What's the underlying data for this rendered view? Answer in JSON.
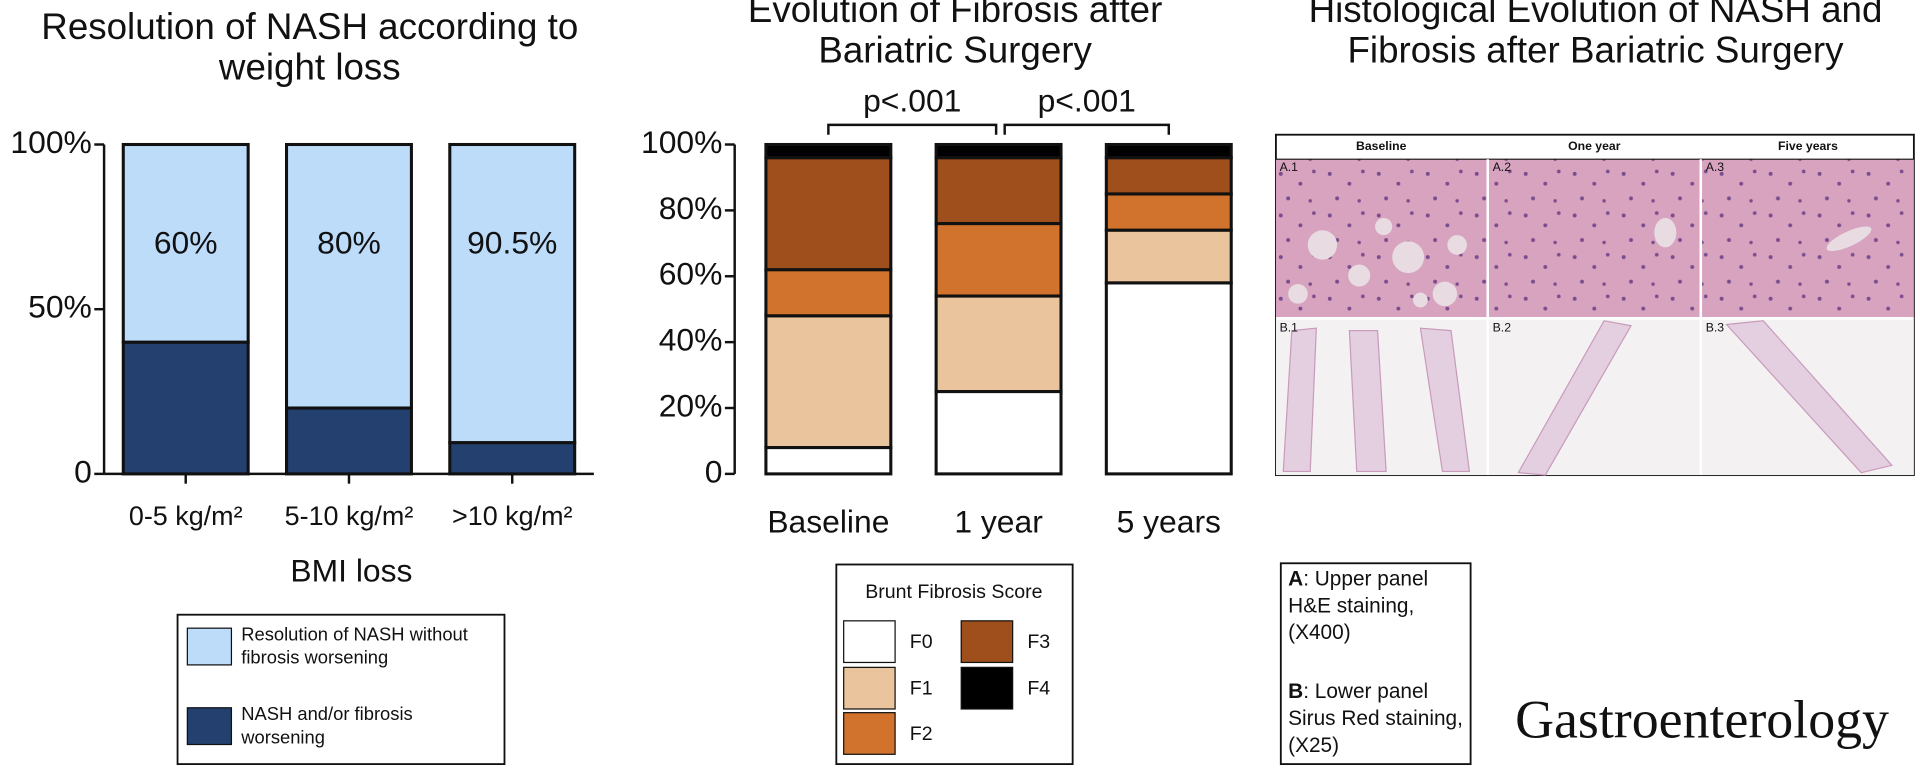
{
  "chart_data": [
    {
      "type": "bar",
      "stacked": true,
      "title": "Resolution of NASH according to weight loss",
      "categories": [
        "0-5 kg/m²",
        "5-10 kg/m²",
        ">10 kg/m²"
      ],
      "x_label": "BMI loss",
      "ylim": [
        0,
        100
      ],
      "yticks": [
        0,
        {
          "value": 50,
          "label": "50%"
        },
        {
          "value": 100,
          "label": "100%"
        }
      ],
      "series": [
        {
          "name": "NASH and/or fibrosis worsening",
          "color": "#24406e",
          "values": [
            40,
            20,
            9.5
          ]
        },
        {
          "name": "Resolution of NASH without fibrosis worsening",
          "color": "#bcdcfa",
          "values": [
            60,
            80,
            90.5
          ],
          "value_labels": [
            "60%",
            "80%",
            "90.5%"
          ]
        }
      ]
    },
    {
      "type": "bar",
      "stacked": true,
      "title": "Evolution of Fibrosis after Bariatric Surgery",
      "categories": [
        "Baseline",
        "1 year",
        "5 years"
      ],
      "legend_title": "Brunt Fibrosis Score",
      "annotations": [
        "p<.001",
        "p<.001"
      ],
      "ylim": [
        0,
        100
      ],
      "yticks": [
        0,
        {
          "value": 20,
          "label": "20%"
        },
        {
          "value": 40,
          "label": "40%"
        },
        {
          "value": 60,
          "label": "60%"
        },
        {
          "value": 80,
          "label": "80%"
        },
        {
          "value": 100,
          "label": "100%"
        }
      ],
      "series": [
        {
          "name": "F0",
          "color": "#ffffff",
          "values": [
            8,
            25,
            58
          ]
        },
        {
          "name": "F1",
          "color": "#eac49c",
          "values": [
            40,
            29,
            16
          ]
        },
        {
          "name": "F2",
          "color": "#d2732d",
          "values": [
            14,
            22,
            11
          ]
        },
        {
          "name": "F3",
          "color": "#9e4f1c",
          "values": [
            34,
            20,
            11
          ]
        },
        {
          "name": "F4",
          "color": "#000000",
          "values": [
            4,
            4,
            4
          ]
        }
      ]
    }
  ],
  "histology": {
    "title": "Histological Evolution of NASH and Fibrosis after Bariatric Surgery",
    "columns": [
      "Baseline",
      "One year",
      "Five years"
    ],
    "panels": [
      [
        "A.1",
        "A.2",
        "A.3"
      ],
      [
        "B.1",
        "B.2",
        "B.3"
      ]
    ],
    "notes": [
      {
        "key": "A",
        "text": ": Upper panel H&E staining, (X400)"
      },
      {
        "key": "B",
        "text": ": Lower panel Sirus Red staining, (X25)"
      }
    ]
  },
  "journal": "Gastroenterology"
}
